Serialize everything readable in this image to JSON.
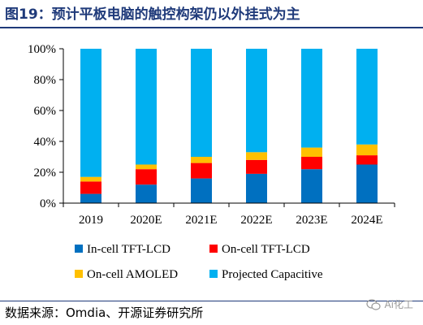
{
  "header": {
    "title": "图19：预计平板电脑的触控构架仍以外挂式为主"
  },
  "footer": {
    "source": "数据来源：Omdia、开源证券研究所",
    "watermark": "Ai化工"
  },
  "colors": {
    "title": "#1f3a7a",
    "in_cell": "#0070c0",
    "on_cell_lcd": "#ff0000",
    "on_cell_amoled": "#ffc000",
    "projected": "#00b0f0"
  },
  "chart_data": {
    "type": "bar",
    "stacked": true,
    "categories": [
      "2019",
      "2020E",
      "2021E",
      "2022E",
      "2023E",
      "2024E"
    ],
    "yticks": [
      "0%",
      "20%",
      "40%",
      "60%",
      "80%",
      "100%"
    ],
    "ylim": [
      0,
      100
    ],
    "grid": false,
    "legend_position": "bottom",
    "series": [
      {
        "name": "In-cell TFT-LCD",
        "color": "#0070c0",
        "values": [
          6,
          12,
          16,
          19,
          22,
          25
        ]
      },
      {
        "name": "On-cell TFT-LCD",
        "color": "#ff0000",
        "values": [
          8,
          10,
          10,
          9,
          8,
          6
        ]
      },
      {
        "name": "On-cell AMOLED",
        "color": "#ffc000",
        "values": [
          3,
          3,
          4,
          5,
          6,
          7
        ]
      },
      {
        "name": "Projected Capacitive",
        "color": "#00b0f0",
        "values": [
          83,
          75,
          70,
          67,
          64,
          62
        ]
      }
    ]
  }
}
